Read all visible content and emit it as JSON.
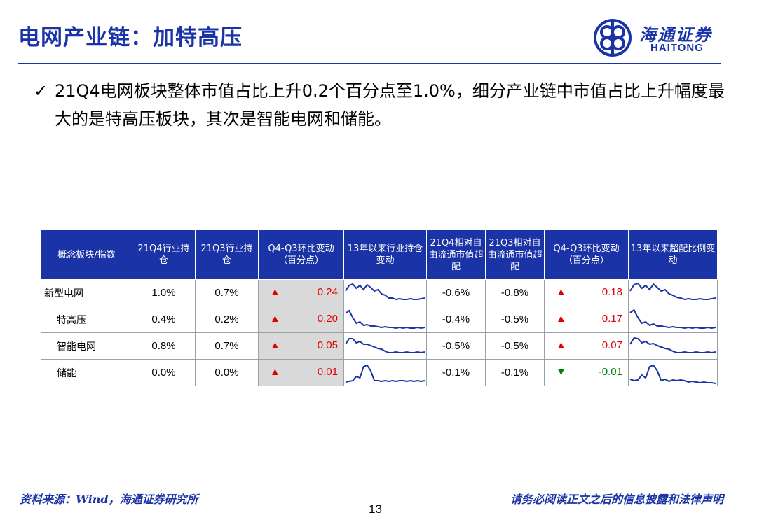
{
  "header": {
    "title": "电网产业链：加特高压",
    "logo_cn": "海通证券",
    "logo_en": "HAITONG"
  },
  "bullet": {
    "check": "✓",
    "text": "21Q4电网板块整体市值占比上升0.2个百分点至1.0%，细分产业链中市值占比上升幅度最大的是特高压板块，其次是智能电网和储能。"
  },
  "table": {
    "headers": [
      "概念板块/指数",
      "21Q4行业持仓",
      "21Q3行业持仓",
      "Q4-Q3环比变动（百分点）",
      "13年以来行业持仓变动",
      "21Q4相对自由流通市值超配",
      "21Q3相对自由流通市值超配",
      "Q4-Q3环比变动（百分点）",
      "13年以来超配比例变动"
    ],
    "rows": [
      {
        "name": "新型电网",
        "q4": "1.0%",
        "q3": "0.7%",
        "chg_arrow": "▲",
        "chg": "0.24",
        "q4_rel": "-0.6%",
        "q3_rel": "-0.8%",
        "rel_arrow": "▲",
        "rel_chg": "0.18"
      },
      {
        "name": "特高压",
        "q4": "0.4%",
        "q3": "0.2%",
        "chg_arrow": "▲",
        "chg": "0.20",
        "q4_rel": "-0.4%",
        "q3_rel": "-0.5%",
        "rel_arrow": "▲",
        "rel_chg": "0.17"
      },
      {
        "name": "智能电网",
        "q4": "0.8%",
        "q3": "0.7%",
        "chg_arrow": "▲",
        "chg": "0.05",
        "q4_rel": "-0.5%",
        "q3_rel": "-0.5%",
        "rel_arrow": "▲",
        "rel_chg": "0.07"
      },
      {
        "name": "储能",
        "q4": "0.0%",
        "q3": "0.0%",
        "chg_arrow": "▲",
        "chg": "0.01",
        "q4_rel": "-0.1%",
        "q3_rel": "-0.1%",
        "rel_arrow": "▼",
        "rel_chg": "-0.01"
      }
    ]
  },
  "sparklines": {
    "row0_hold": [
      14,
      6,
      4,
      10,
      6,
      12,
      5,
      9,
      14,
      12,
      18,
      20,
      24,
      24,
      26,
      25,
      26,
      26,
      25,
      26,
      26,
      25,
      24
    ],
    "row0_over": [
      14,
      5,
      3,
      10,
      6,
      12,
      4,
      9,
      14,
      12,
      18,
      20,
      23,
      24,
      26,
      25,
      26,
      26,
      25,
      26,
      26,
      25,
      24
    ],
    "row1_hold": [
      8,
      4,
      14,
      22,
      20,
      25,
      24,
      26,
      26,
      27,
      28,
      27,
      28,
      28,
      29,
      28,
      29,
      28,
      29,
      29,
      28,
      29,
      28
    ],
    "row1_over": [
      7,
      3,
      14,
      22,
      20,
      25,
      23,
      26,
      26,
      27,
      28,
      27,
      28,
      28,
      29,
      28,
      29,
      28,
      29,
      29,
      28,
      29,
      28
    ],
    "row2_hold": [
      14,
      6,
      6,
      12,
      10,
      14,
      14,
      16,
      18,
      20,
      21,
      24,
      26,
      26,
      25,
      26,
      26,
      25,
      26,
      26,
      25,
      26,
      25
    ],
    "row2_over": [
      14,
      5,
      6,
      12,
      10,
      14,
      13,
      16,
      18,
      20,
      21,
      24,
      26,
      26,
      25,
      26,
      26,
      25,
      26,
      26,
      25,
      26,
      25
    ],
    "row3_hold": [
      30,
      29,
      28,
      22,
      24,
      8,
      6,
      14,
      28,
      28,
      29,
      28,
      29,
      28,
      29,
      28,
      28,
      29,
      28,
      29,
      28,
      29,
      28
    ],
    "row3_over": [
      26,
      28,
      27,
      20,
      24,
      8,
      6,
      14,
      28,
      26,
      29,
      27,
      28,
      27,
      28,
      30,
      29,
      30,
      31,
      30,
      31,
      31,
      32
    ],
    "color": "#1a33a6"
  },
  "footer": {
    "source": "资料来源：Wind，海通证券研究所",
    "page": "13",
    "disclaimer": "请务必阅读正文之后的信息披露和法律声明"
  }
}
